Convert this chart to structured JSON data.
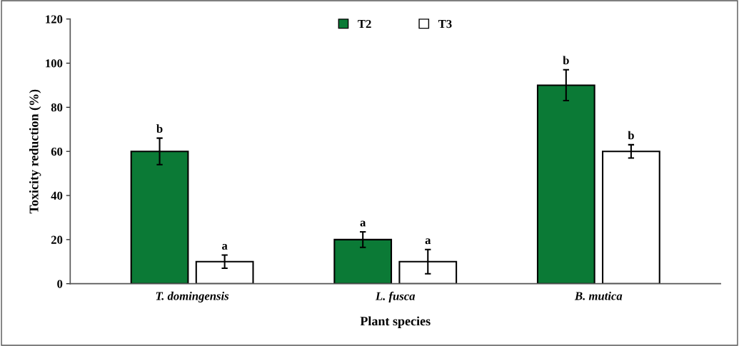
{
  "chart_data": {
    "type": "bar",
    "xlabel": "Plant species",
    "ylabel": "Toxicity reduction (%)",
    "categories": [
      "T. domingensis",
      "L. fusca",
      "B. mutica"
    ],
    "series": [
      {
        "name": "T2",
        "color": "#0b7a36",
        "values": [
          60,
          20,
          90
        ],
        "errors": [
          6,
          3.5,
          7
        ]
      },
      {
        "name": "T3",
        "color": "#ffffff",
        "values": [
          10,
          10,
          60
        ],
        "errors": [
          3,
          5.5,
          3
        ]
      }
    ],
    "ylim": [
      0,
      120
    ],
    "yticks": [
      0,
      20,
      40,
      60,
      80,
      100,
      120
    ],
    "grid": false,
    "legend": "top",
    "annotations": [
      "b",
      "a",
      "b",
      "a",
      "a",
      "b"
    ]
  }
}
